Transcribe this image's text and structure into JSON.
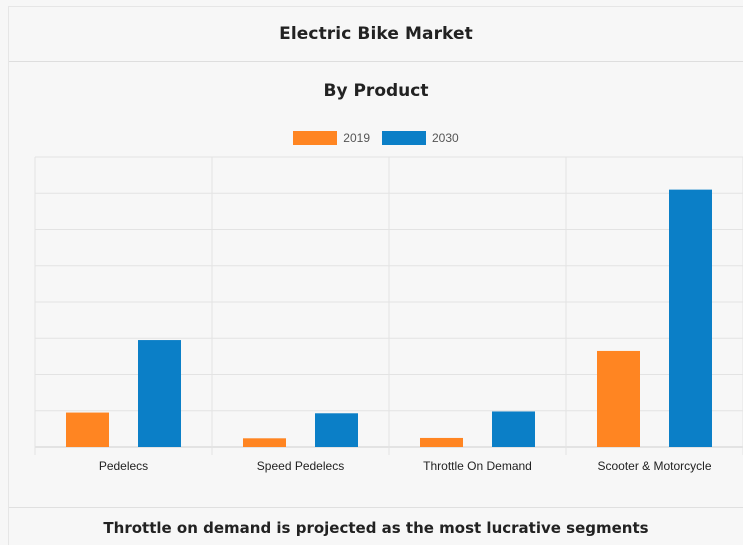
{
  "header": {
    "title": "Electric Bike Market"
  },
  "footer": {
    "text": "Throttle on demand is projected as the most lucrative segments"
  },
  "colors": {
    "2019": "#ff8522",
    "2030": "#0b7fc7",
    "grid": "#e3e3e3",
    "axis": "#cfcfcf"
  },
  "chart_data": {
    "type": "bar",
    "title": "By Product",
    "categories": [
      "Pedelecs",
      "Speed Pedelecs",
      "Throttle On Demand",
      "Scooter & Motorcycle"
    ],
    "series": [
      {
        "name": "2019",
        "values": [
          9.5,
          2.4,
          2.5,
          26.5
        ]
      },
      {
        "name": "2030",
        "values": [
          29.5,
          9.3,
          9.8,
          71.0
        ]
      }
    ],
    "ylim": [
      0,
      80
    ],
    "grid": true,
    "legend_position": "top-center"
  }
}
